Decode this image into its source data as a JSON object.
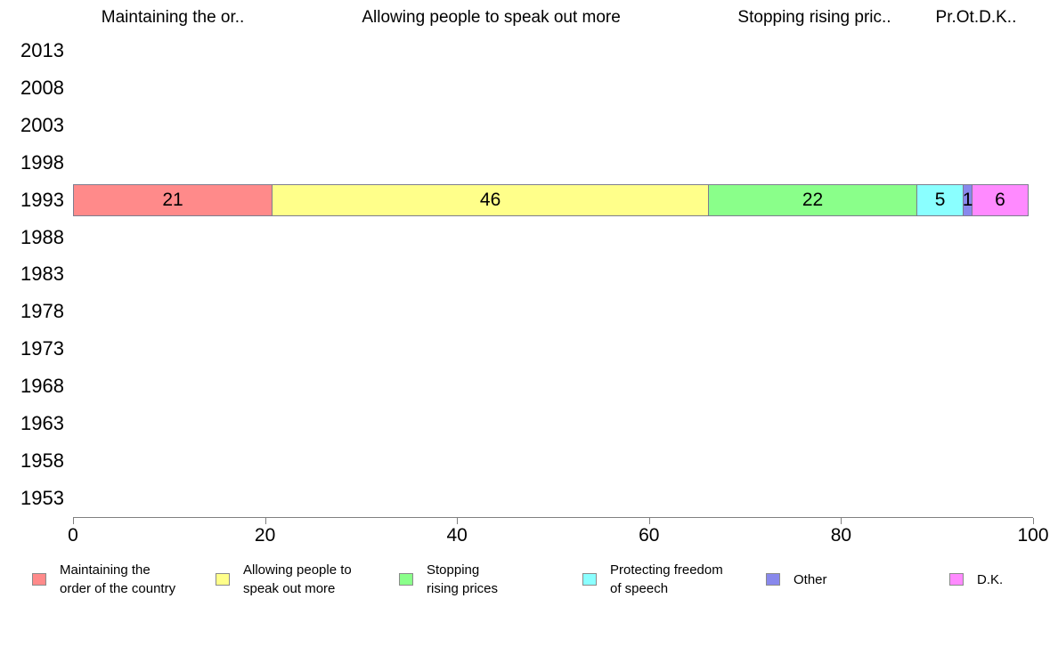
{
  "chart_data": {
    "type": "bar",
    "orientation": "horizontal",
    "stacked": true,
    "title": "",
    "xlabel": "",
    "ylabel": "",
    "grid": false,
    "legend_position": "bottom",
    "categories": [
      "2013",
      "2008",
      "2003",
      "1998",
      "1993",
      "1988",
      "1983",
      "1978",
      "1973",
      "1968",
      "1963",
      "1958",
      "1953"
    ],
    "bar_row": "1993",
    "series": [
      {
        "name": "Maintaining the order of the country",
        "color": "#ff8a8a",
        "values": {
          "1993": 21
        }
      },
      {
        "name": "Allowing people to speak out more",
        "color": "#ffff8a",
        "values": {
          "1993": 46
        }
      },
      {
        "name": "Stopping rising prices",
        "color": "#8aff8a",
        "values": {
          "1993": 22
        }
      },
      {
        "name": "Protecting freedom of speech",
        "color": "#8affff",
        "values": {
          "1993": 5
        }
      },
      {
        "name": "Other",
        "color": "#8888ec",
        "values": {
          "1993": 1
        }
      },
      {
        "name": "D.K.",
        "color": "#ff8aff",
        "values": {
          "1993": 6
        }
      }
    ],
    "column_headers": [
      "Maintaining the or..",
      "Allowing people to speak out more",
      "Stopping rising pric..",
      "Pr.Ot.D.K.."
    ],
    "xlim": [
      0,
      100
    ],
    "x_ticks": [
      "0",
      "20",
      "40",
      "60",
      "80",
      "100"
    ],
    "legend": [
      {
        "lines": [
          "Maintaining the",
          "order of the country"
        ],
        "color": "#ff8a8a"
      },
      {
        "lines": [
          "Allowing people to",
          "speak out more"
        ],
        "color": "#ffff8a"
      },
      {
        "lines": [
          "Stopping",
          "rising prices"
        ],
        "color": "#8aff8a"
      },
      {
        "lines": [
          "Protecting freedom",
          "of speech"
        ],
        "color": "#8affff"
      },
      {
        "lines": [
          "Other"
        ],
        "color": "#8888ec"
      },
      {
        "lines": [
          "D.K."
        ],
        "color": "#ff8aff"
      }
    ],
    "axis_color": "#808080",
    "text_color": "#000000"
  }
}
